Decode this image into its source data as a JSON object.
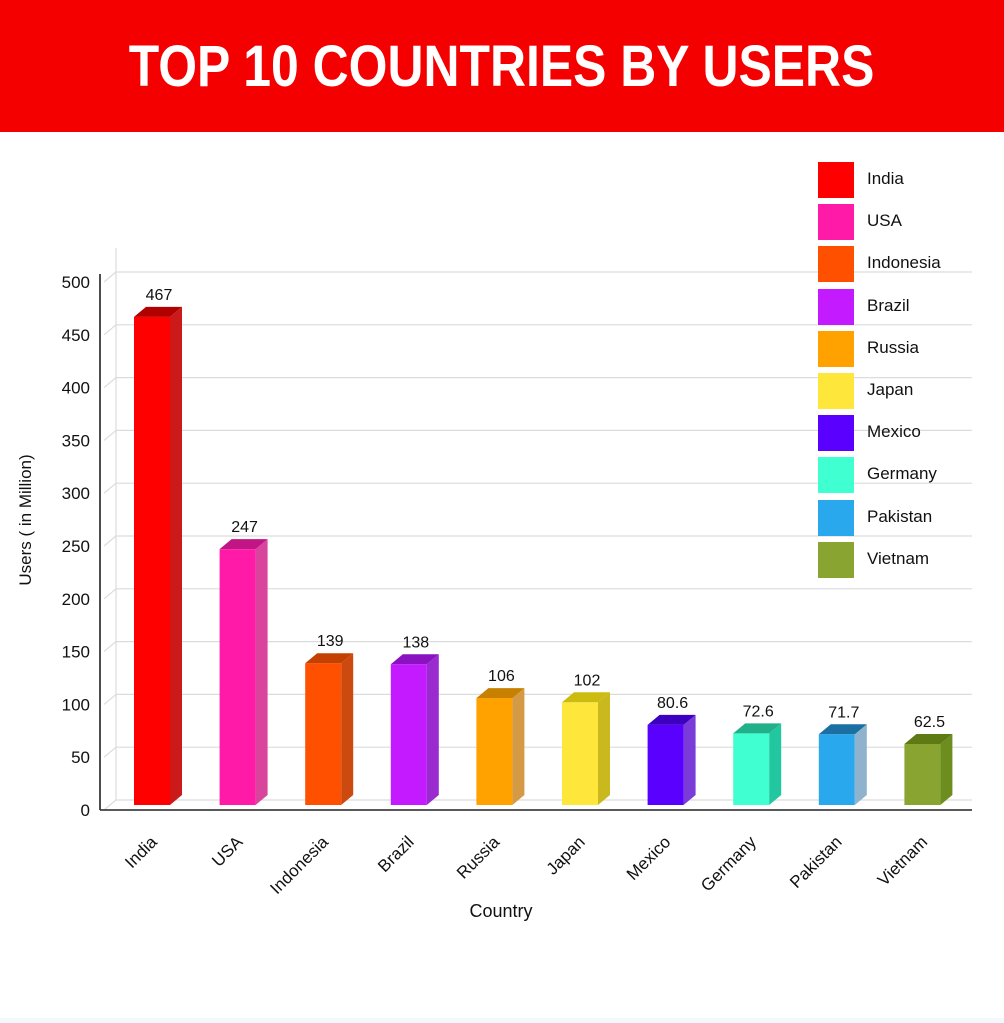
{
  "header": {
    "title": "TOP 10 COUNTRIES BY USERS"
  },
  "colors": {
    "title_bar": "#f40000"
  },
  "chart_data": {
    "type": "bar",
    "title": "TOP 10 COUNTRIES BY USERS",
    "xlabel": "Country",
    "ylabel": "Users ( in Million)",
    "ylim": [
      0,
      500
    ],
    "yticks": [
      "0",
      "50",
      "100",
      "150",
      "200",
      "250",
      "300",
      "350",
      "400",
      "450",
      "500"
    ],
    "grid": true,
    "legend_position": "top-right",
    "categories": [
      "India",
      "USA",
      "Indonesia",
      "Brazil",
      "Russia",
      "Japan",
      "Mexico",
      "Germany",
      "Pakistan",
      "Vietnam"
    ],
    "values": [
      467,
      247,
      139,
      138,
      106,
      102,
      80.6,
      72.6,
      71.7,
      62.5
    ],
    "value_labels": [
      "467",
      "247",
      "139",
      "138",
      "106",
      "102",
      "80.6",
      "72.6",
      "71.7",
      "62.5"
    ],
    "bar_colors": [
      "#ff0000",
      "#ff1aa8",
      "#ff5000",
      "#c41aff",
      "#ffa200",
      "#ffe63a",
      "#5a00ff",
      "#40ffd0",
      "#2aa8ee",
      "#8aa432"
    ],
    "side_colors": [
      "#cc1a1a",
      "#d9459c",
      "#cc4a10",
      "#9a2ccf",
      "#d49a45",
      "#c9b91f",
      "#7a3cd8",
      "#22c7a0",
      "#8fb3cc",
      "#6d8e1e"
    ],
    "top_colors": [
      "#b00000",
      "#c21585",
      "#c44000",
      "#8a12c0",
      "#c78000",
      "#cdbc10",
      "#3d00c0",
      "#20b08a",
      "#1a6fa3",
      "#5d7a15"
    ]
  }
}
